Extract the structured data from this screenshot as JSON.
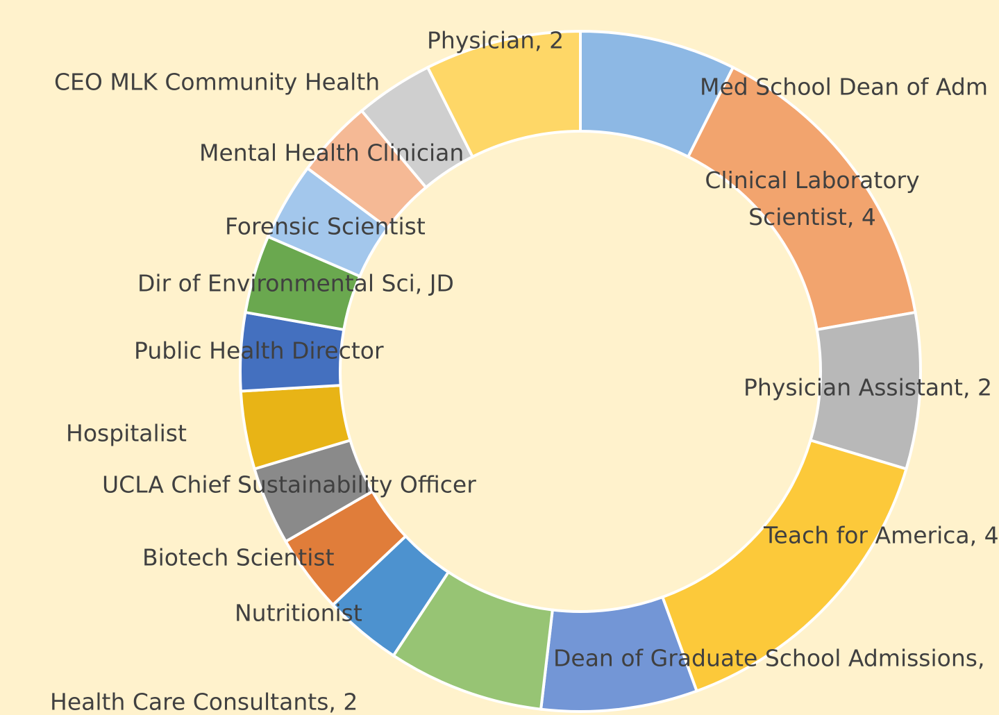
{
  "chart_data": {
    "type": "donut",
    "categories": [
      "Med School Dean of Adm",
      "Clinical Laboratory Scientist, 4",
      "Physician Assistant, 2",
      "Teach for America, 4",
      "Dean of Graduate School Admissions,",
      "Health Care Consultants, 2",
      "Nutritionist",
      "Biotech Scientist",
      "UCLA Chief Sustainability Officer",
      "Hospitalist",
      "Public Health Director",
      "Dir of Environmental Sci, JD",
      "Forensic Scientist",
      "Mental Health Clinician",
      "CEO MLK Community Health",
      "Physician, 2"
    ],
    "values": [
      2,
      4,
      2,
      4,
      2,
      2,
      1,
      1,
      1,
      1,
      1,
      1,
      1,
      1,
      1,
      2
    ],
    "colors": [
      "#8db8e4",
      "#f2a46e",
      "#b8b8b8",
      "#fcc93a",
      "#7396d6",
      "#97c474",
      "#4d92cf",
      "#e07d3a",
      "#8a8a8a",
      "#e8b416",
      "#4470bf",
      "#6aa84f",
      "#a3c7ec",
      "#f5b995",
      "#cfcfcf",
      "#fed767"
    ]
  }
}
